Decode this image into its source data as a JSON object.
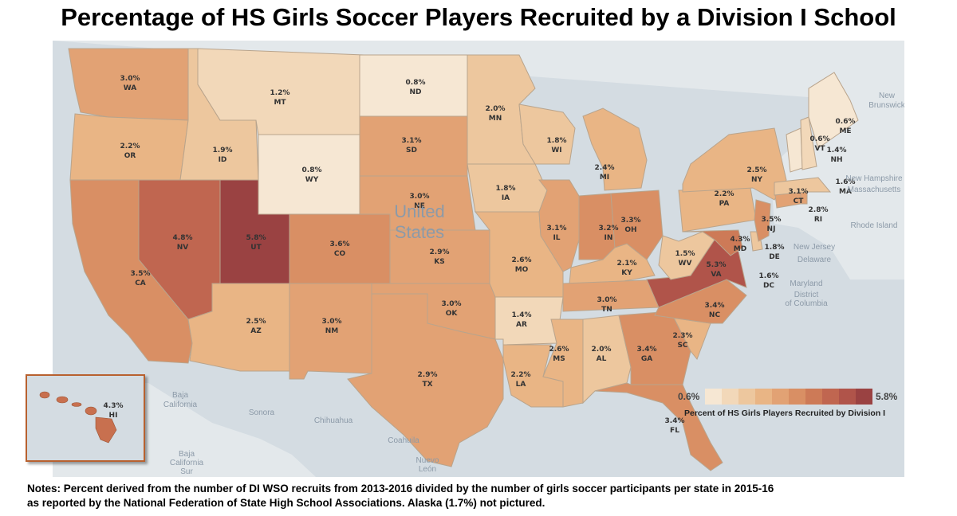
{
  "title": "Percentage of HS Girls Soccer Players Recruited by a Division I School",
  "notes": [
    "Notes: Percent derived from the number of DI WSO recruits from 2013-2016 divided by the number of girls soccer participants per state in 2015-16",
    "as reported by the National Federation of State High School Associations.  Alaska (1.7%) not pictured."
  ],
  "legend": {
    "min": "0.6%",
    "max": "5.8%",
    "title": "Percent of HS Girls Players Recruited by Division I",
    "colors": [
      "#f6e7d3",
      "#f2d8b9",
      "#edc79e",
      "#e9b585",
      "#e2a274",
      "#d98f64",
      "#cd7a57",
      "#c06650",
      "#b0544a",
      "#9a4242"
    ]
  },
  "states": [
    {
      "abbr": "WA",
      "value": "3.0%"
    },
    {
      "abbr": "OR",
      "value": "2.2%"
    },
    {
      "abbr": "CA",
      "value": "3.5%"
    },
    {
      "abbr": "NV",
      "value": "4.8%"
    },
    {
      "abbr": "ID",
      "value": "1.9%"
    },
    {
      "abbr": "MT",
      "value": "1.2%"
    },
    {
      "abbr": "WY",
      "value": "0.8%"
    },
    {
      "abbr": "UT",
      "value": "5.8%"
    },
    {
      "abbr": "AZ",
      "value": "2.5%"
    },
    {
      "abbr": "CO",
      "value": "3.6%"
    },
    {
      "abbr": "NM",
      "value": "3.0%"
    },
    {
      "abbr": "ND",
      "value": "0.8%"
    },
    {
      "abbr": "SD",
      "value": "3.1%"
    },
    {
      "abbr": "NE",
      "value": "3.0%"
    },
    {
      "abbr": "KS",
      "value": "2.9%"
    },
    {
      "abbr": "OK",
      "value": "3.0%"
    },
    {
      "abbr": "TX",
      "value": "2.9%"
    },
    {
      "abbr": "MN",
      "value": "2.0%"
    },
    {
      "abbr": "IA",
      "value": "1.8%"
    },
    {
      "abbr": "MO",
      "value": "2.6%"
    },
    {
      "abbr": "AR",
      "value": "1.4%"
    },
    {
      "abbr": "LA",
      "value": "2.2%"
    },
    {
      "abbr": "WI",
      "value": "1.8%"
    },
    {
      "abbr": "IL",
      "value": "3.1%"
    },
    {
      "abbr": "MS",
      "value": "2.6%"
    },
    {
      "abbr": "MI",
      "value": "2.4%"
    },
    {
      "abbr": "IN",
      "value": "3.2%"
    },
    {
      "abbr": "KY",
      "value": "2.1%"
    },
    {
      "abbr": "TN",
      "value": "3.0%"
    },
    {
      "abbr": "AL",
      "value": "2.0%"
    },
    {
      "abbr": "OH",
      "value": "3.3%"
    },
    {
      "abbr": "GA",
      "value": "3.4%"
    },
    {
      "abbr": "FL",
      "value": "3.4%"
    },
    {
      "abbr": "SC",
      "value": "2.3%"
    },
    {
      "abbr": "NC",
      "value": "3.4%"
    },
    {
      "abbr": "VA",
      "value": "5.3%"
    },
    {
      "abbr": "WV",
      "value": "1.5%"
    },
    {
      "abbr": "PA",
      "value": "2.2%"
    },
    {
      "abbr": "NY",
      "value": "2.5%"
    },
    {
      "abbr": "MD",
      "value": "4.3%"
    },
    {
      "abbr": "DE",
      "value": "1.8%"
    },
    {
      "abbr": "NJ",
      "value": "3.5%"
    },
    {
      "abbr": "DC",
      "value": "1.6%"
    },
    {
      "abbr": "CT",
      "value": "3.1%"
    },
    {
      "abbr": "RI",
      "value": "2.8%"
    },
    {
      "abbr": "MA",
      "value": "1.6%"
    },
    {
      "abbr": "VT",
      "value": "0.6%"
    },
    {
      "abbr": "NH",
      "value": "1.4%"
    },
    {
      "abbr": "ME",
      "value": "0.6%"
    },
    {
      "abbr": "HI",
      "value": "4.3%"
    }
  ],
  "basemap_labels": [
    "United",
    "States",
    "Baja",
    "California",
    "Sonora",
    "Chihuahua",
    "Coahuila",
    "Nuevo",
    "León",
    "Baja",
    "California",
    "Sur",
    "New",
    "Brunswick",
    "New Hampshire",
    "Massachusetts",
    "Rhode Island",
    "New Jersey",
    "Delaware",
    "Maryland",
    "District",
    "of Columbia"
  ]
}
